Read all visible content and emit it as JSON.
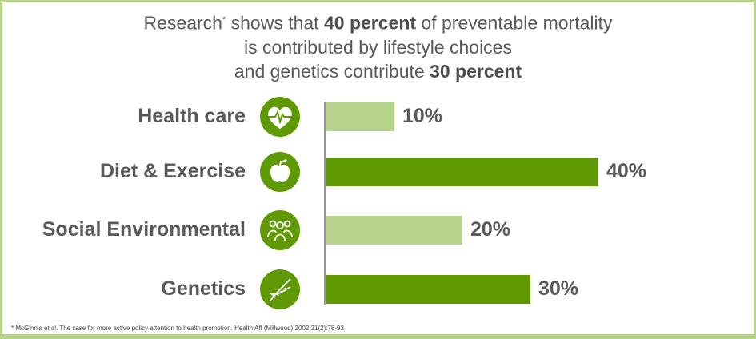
{
  "title": {
    "line1_pre": "Research",
    "line1_sup": "*",
    "line1_mid": " shows that ",
    "line1_bold": "40 percent",
    "line1_post": " of preventable mortality",
    "line2": "is contributed by lifestyle choices",
    "line3_pre": "and genetics  contribute ",
    "line3_bold": "30 percent"
  },
  "chart_data": {
    "type": "bar",
    "orientation": "horizontal",
    "categories": [
      "Health care",
      "Diet & Exercise",
      "Social Environmental",
      "Genetics"
    ],
    "values": [
      10,
      40,
      20,
      30
    ],
    "value_labels": [
      "10%",
      "40%",
      "20%",
      "30%"
    ],
    "icons": [
      "heart-pulse-icon",
      "apple-icon",
      "people-icon",
      "dna-icon"
    ],
    "colors": [
      "#b5d38a",
      "#5f9a05",
      "#b5d38a",
      "#5f9a05"
    ],
    "xlim": [
      0,
      100
    ],
    "grid": false
  },
  "footnote": "* McGinnis et al. The case for more active policy attention to health promotion. Health Aff (Millwood) 2002;21(2):78-93"
}
